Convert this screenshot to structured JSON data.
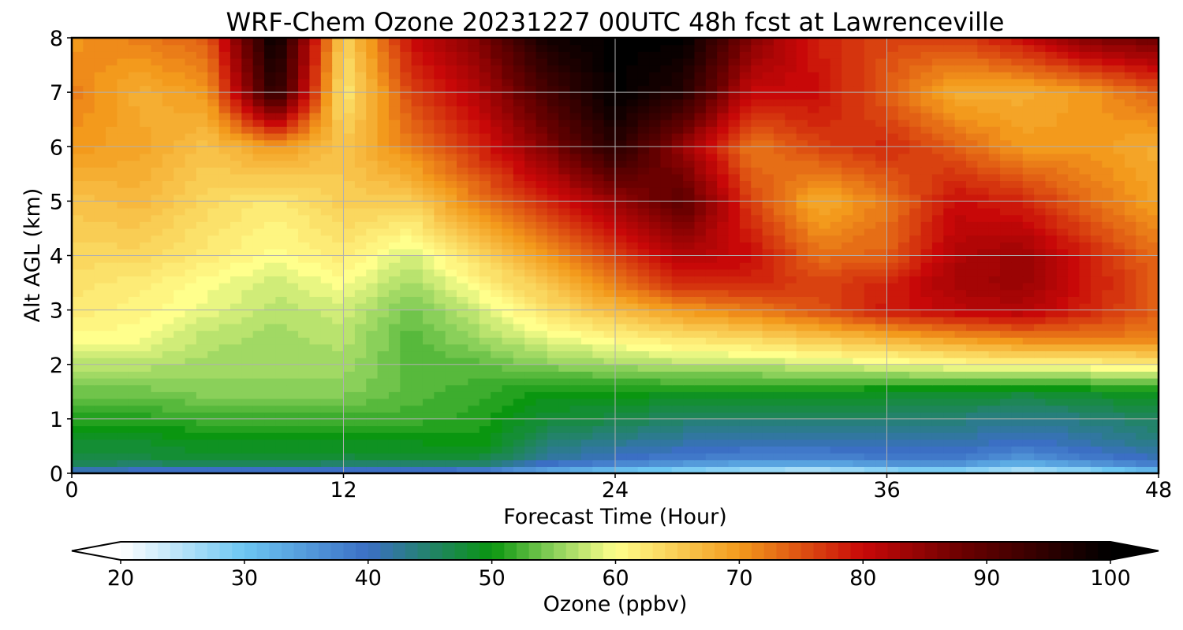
{
  "chart_data": {
    "type": "heatmap",
    "title": "WRF-Chem Ozone  20231227 00UTC 48h fcst at Lawrenceville",
    "xlabel": "Forecast Time (Hour)",
    "ylabel": "Alt AGL (km)",
    "xlim": [
      0,
      48
    ],
    "ylim": [
      0,
      8
    ],
    "xticks": [
      "0",
      "12",
      "24",
      "36",
      "48"
    ],
    "yticks": [
      "0",
      "1",
      "2",
      "3",
      "4",
      "5",
      "6",
      "7",
      "8"
    ],
    "grid": true,
    "x_hours": [
      0,
      3,
      6,
      9,
      12,
      15,
      18,
      21,
      24,
      27,
      30,
      33,
      36,
      39,
      42,
      45,
      48
    ],
    "y_km": [
      0,
      0.1,
      0.25,
      0.5,
      1,
      1.5,
      2,
      2.5,
      3,
      3.5,
      4,
      5,
      6,
      7,
      8
    ],
    "z_ppbv": [
      [
        37,
        36,
        36,
        36,
        36,
        36,
        34,
        30,
        27,
        24,
        22,
        21,
        22,
        23,
        21,
        23,
        27
      ],
      [
        44,
        43,
        43,
        43,
        43,
        43,
        42,
        37,
        34,
        32,
        30,
        29,
        32,
        33,
        29,
        32,
        36
      ],
      [
        47,
        47,
        48,
        48,
        47,
        47,
        47,
        42,
        40,
        38,
        37,
        37,
        38,
        38,
        35,
        38,
        40
      ],
      [
        48,
        48,
        49,
        49,
        49,
        49,
        50,
        44,
        42,
        41,
        40,
        40,
        41,
        41,
        39,
        41,
        43
      ],
      [
        51,
        51,
        52,
        52,
        52,
        52,
        51,
        48,
        47,
        45,
        45,
        45,
        45,
        44,
        43,
        44,
        46
      ],
      [
        54,
        54,
        55,
        55,
        55,
        53,
        52,
        50,
        50,
        50,
        50,
        50,
        49,
        49,
        48,
        49,
        50
      ],
      [
        57,
        57,
        56,
        56,
        56,
        53,
        53,
        55,
        56,
        57,
        57,
        58,
        59,
        60,
        61,
        61,
        62
      ],
      [
        60,
        60,
        57,
        56,
        57,
        53,
        56,
        59,
        61,
        63,
        64,
        66,
        68,
        70,
        72,
        72,
        72
      ],
      [
        62,
        61,
        59,
        57,
        58,
        54,
        58,
        63,
        67,
        70,
        72,
        75,
        79,
        81,
        82,
        78,
        74
      ],
      [
        63,
        62,
        60,
        58,
        60,
        56,
        61,
        66,
        72,
        78,
        78,
        76,
        78,
        83,
        84,
        79,
        74
      ],
      [
        64,
        64,
        62,
        60,
        62,
        58,
        64,
        70,
        76,
        82,
        80,
        73,
        74,
        82,
        84,
        78,
        73
      ],
      [
        66,
        67,
        64,
        62,
        65,
        65,
        72,
        78,
        84,
        90,
        76,
        68,
        72,
        80,
        78,
        73,
        69
      ],
      [
        70,
        69,
        66,
        70,
        66,
        72,
        78,
        86,
        96,
        84,
        72,
        76,
        78,
        74,
        70,
        70,
        68
      ],
      [
        72,
        68,
        70,
        96,
        62,
        76,
        82,
        92,
        100,
        96,
        80,
        80,
        74,
        68,
        68,
        70,
        74
      ],
      [
        70,
        72,
        74,
        100,
        64,
        80,
        86,
        98,
        100,
        100,
        86,
        78,
        76,
        76,
        80,
        86,
        88
      ]
    ],
    "colorbar": {
      "label": "Ozone  (ppbv)",
      "min": 20,
      "max": 100,
      "ticks": [
        "20",
        "30",
        "40",
        "50",
        "60",
        "70",
        "80",
        "90",
        "100"
      ],
      "extend": "both",
      "colormap_stops": [
        {
          "v": 20,
          "c": "#ffffff"
        },
        {
          "v": 30,
          "c": "#6cc6f2"
        },
        {
          "v": 40,
          "c": "#3b6fc4"
        },
        {
          "v": 50,
          "c": "#0a9610"
        },
        {
          "v": 55,
          "c": "#8ad05a"
        },
        {
          "v": 60,
          "c": "#ffff8c"
        },
        {
          "v": 70,
          "c": "#f39a1c"
        },
        {
          "v": 80,
          "c": "#c80808"
        },
        {
          "v": 88,
          "c": "#6b0000"
        },
        {
          "v": 100,
          "c": "#000000"
        }
      ]
    }
  }
}
